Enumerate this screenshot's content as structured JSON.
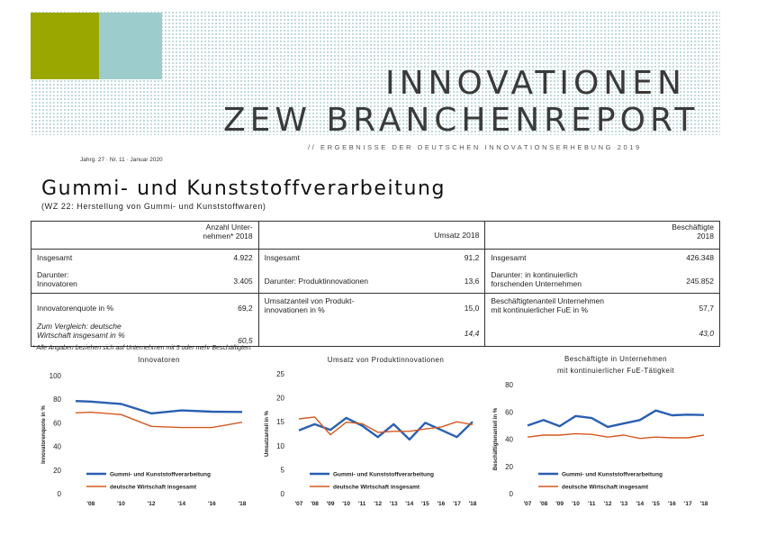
{
  "header": {
    "title_line1": "INNOVATIONEN",
    "title_line2": "ZEW BRANCHENREPORT",
    "subtitle": "// ERGEBNISSE DER DEUTSCHEN INNOVATIONSERHEBUNG 2019",
    "issue": "Jahrg. 27 · Nr. 11 · Januar 2020",
    "colors": {
      "olive": "#99a700",
      "teal": "#9ccccc"
    }
  },
  "report": {
    "title": "Gummi- und Kunststoffverarbeitung",
    "code": "(WZ 22: Herstellung von Gummi- und Kunststoffwaren)"
  },
  "kpi_table": {
    "headers": [
      "Anzahl Unter-\nnehmen* 2018",
      "Umsatz 2018",
      "Beschäftigte\n2018"
    ],
    "rows": [
      {
        "c1": "Insgesamt",
        "v1": "4.922",
        "c2": "Insgesamt",
        "v2": "91,2",
        "c3": "Insgesamt",
        "v3": "426.348"
      },
      {
        "c1": "Darunter:\nInnovatoren",
        "v1": "3.405",
        "c2": "Darunter: Produktinnovationen",
        "v2": "13,6",
        "c3": "Darunter: in kontinuierlich\nforschenden Unternehmen",
        "v3": "245.852"
      },
      {
        "c1": "Innovatorenquote in %",
        "v1": "69,2",
        "c2": "Umsatzanteil von Produkt-\ninnovationen in %",
        "v2": "15,0",
        "c3": "Beschäftigtenanteil Unternehmen\nmit kontinuierlicher FuE in %",
        "v3": "57,7"
      },
      {
        "c1": "Zum Vergleich: deutsche\nWirtschaft insgesamt in %",
        "v1": "60,5",
        "c2": "",
        "v2": "14,4",
        "c3": "",
        "v3": "43,0"
      }
    ],
    "footnote": "* Alle Angaben beziehen sich auf Unternehmen mit 5 oder mehr Beschäftigten."
  },
  "chart_data": [
    {
      "type": "line",
      "title": "Innovatoren",
      "ylabel": "Innovatorenquote in %",
      "ylim": [
        0,
        100
      ],
      "yticks": [
        0,
        20,
        40,
        60,
        80,
        100
      ],
      "x": [
        2007,
        2008,
        2009,
        2010,
        2011,
        2012,
        2013,
        2014,
        2015,
        2016,
        2017,
        2018
      ],
      "xticklabels": {
        "2008": "'08",
        "2010": "'10",
        "2012": "'12",
        "2014": "'14",
        "2016": "'16",
        "2018": "'18"
      },
      "series": [
        {
          "name": "Gummi- und Kunststoffverarbeitung",
          "color": "#2a5fb0",
          "x": [
            2007,
            2008,
            2010,
            2012,
            2014,
            2016,
            2018
          ],
          "values": [
            78.5,
            78,
            76,
            68,
            70.5,
            69.5,
            69.2
          ]
        },
        {
          "name": "deutsche Wirtschaft insgesamt",
          "color": "#d4581f",
          "x": [
            2007,
            2008,
            2010,
            2012,
            2014,
            2016,
            2018
          ],
          "values": [
            68.5,
            69,
            67,
            57,
            56,
            56,
            60.5
          ]
        }
      ],
      "legend": "bottom"
    },
    {
      "type": "line",
      "title": "Umsatz von Produktinnovationen",
      "ylabel": "Umsatzanteil in %",
      "ylim": [
        0,
        25
      ],
      "yticks": [
        0,
        5,
        10,
        15,
        20,
        25
      ],
      "x": [
        2007,
        2008,
        2009,
        2010,
        2011,
        2012,
        2013,
        2014,
        2015,
        2016,
        2017,
        2018
      ],
      "xticklabels": {
        "2007": "'07",
        "2008": "'08",
        "2009": "'09",
        "2010": "'10",
        "2011": "'11",
        "2012": "'12",
        "2013": "'13",
        "2014": "'14",
        "2015": "'15",
        "2016": "'16",
        "2017": "'17",
        "2018": "'18"
      },
      "series": [
        {
          "name": "Gummi- und Kunststoffverarbeitung",
          "color": "#2a5fb0",
          "x": [
            2007,
            2008,
            2009,
            2010,
            2011,
            2012,
            2013,
            2014,
            2015,
            2016,
            2017,
            2018
          ],
          "values": [
            13.2,
            14.5,
            13.3,
            15.8,
            14.2,
            11.8,
            14.5,
            11.3,
            14.8,
            13.3,
            11.8,
            15.0
          ]
        },
        {
          "name": "deutsche Wirtschaft insgesamt",
          "color": "#d4581f",
          "x": [
            2007,
            2008,
            2009,
            2010,
            2011,
            2012,
            2013,
            2014,
            2015,
            2016,
            2017,
            2018
          ],
          "values": [
            15.6,
            16.0,
            12.3,
            14.9,
            14.6,
            12.8,
            13.0,
            13.0,
            13.5,
            13.9,
            15.0,
            14.4
          ]
        }
      ],
      "legend": "bottom"
    },
    {
      "type": "line",
      "title": "Beschäftigte in Unternehmen\nmit kontinuierlicher FuE-Tätigkeit",
      "ylabel": "Beschäftigtenanteil in %",
      "ylim": [
        0,
        80
      ],
      "yticks": [
        0,
        20,
        40,
        60,
        80
      ],
      "x": [
        2007,
        2008,
        2009,
        2010,
        2011,
        2012,
        2013,
        2014,
        2015,
        2016,
        2017,
        2018
      ],
      "xticklabels": {
        "2007": "'07",
        "2008": "'08",
        "2009": "'09",
        "2010": "'10",
        "2011": "'11",
        "2012": "'12",
        "2013": "'13",
        "2014": "'14",
        "2015": "'15",
        "2016": "'16",
        "2017": "'17",
        "2018": "'18"
      },
      "series": [
        {
          "name": "Gummi- und Kunststoffverarbeitung",
          "color": "#2a5fb0",
          "x": [
            2007,
            2008,
            2009,
            2010,
            2011,
            2012,
            2013,
            2014,
            2015,
            2016,
            2017,
            2018
          ],
          "values": [
            50,
            54,
            49.5,
            57,
            55.5,
            49,
            51.5,
            54,
            61,
            57.5,
            58,
            57.7
          ]
        },
        {
          "name": "deutsche Wirtschaft insgesamt",
          "color": "#d4581f",
          "x": [
            2007,
            2008,
            2009,
            2010,
            2011,
            2012,
            2013,
            2014,
            2015,
            2016,
            2017,
            2018
          ],
          "values": [
            41.5,
            43,
            43,
            44,
            43.5,
            41.5,
            43,
            40.5,
            41.5,
            41,
            41,
            43.0
          ]
        }
      ],
      "legend": "bottom"
    }
  ]
}
